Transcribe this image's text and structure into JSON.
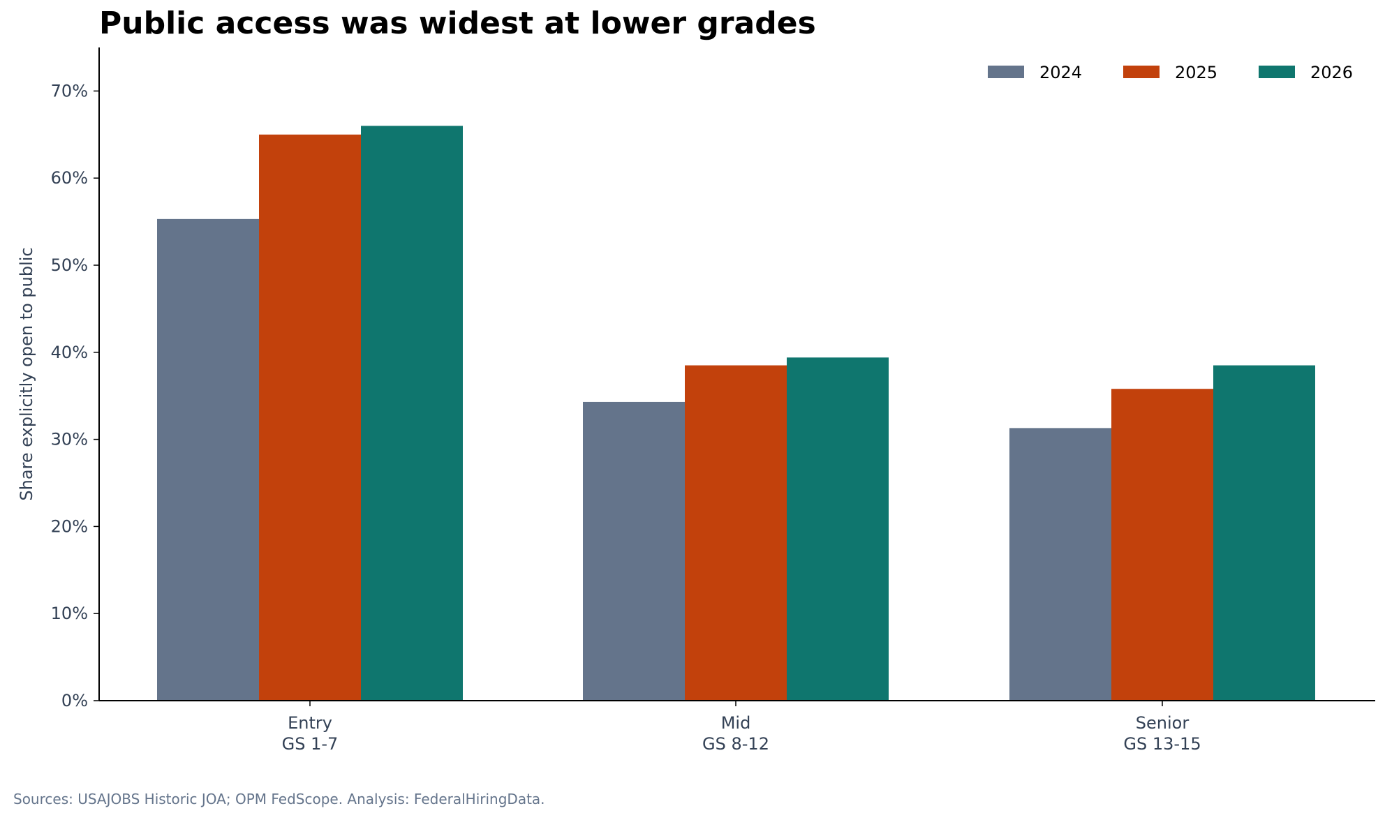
{
  "chart_data": {
    "type": "bar",
    "title": "Public access was widest at lower grades",
    "xlabel": "",
    "ylabel": "Share explicitly open to public",
    "ylim": [
      0,
      75
    ],
    "yticks": [
      0,
      10,
      20,
      30,
      40,
      50,
      60,
      70
    ],
    "ytick_labels": [
      "0%",
      "10%",
      "20%",
      "30%",
      "40%",
      "50%",
      "60%",
      "70%"
    ],
    "categories": [
      [
        "Entry",
        "GS 1-7"
      ],
      [
        "Mid",
        "GS 8-12"
      ],
      [
        "Senior",
        "GS 13-15"
      ]
    ],
    "series": [
      {
        "name": "2024",
        "color": "#64748b",
        "values": [
          55.3,
          34.3,
          31.3
        ]
      },
      {
        "name": "2025",
        "color": "#c2410c",
        "values": [
          65.0,
          38.5,
          35.8
        ]
      },
      {
        "name": "2026",
        "color": "#0f766e",
        "values": [
          66.0,
          39.4,
          38.5
        ]
      }
    ],
    "grid": false,
    "legend_position": "top-right"
  },
  "source": "Sources: USAJOBS Historic JOA; OPM FedScope. Analysis: FederalHiringData."
}
